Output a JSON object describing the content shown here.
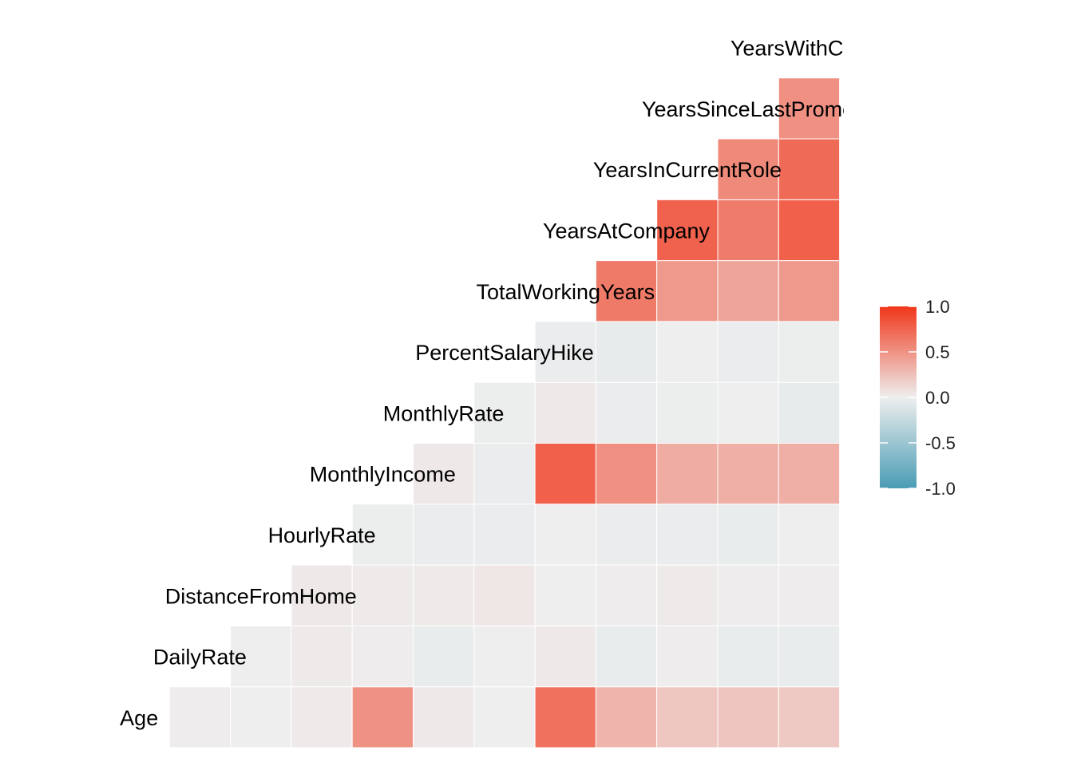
{
  "chart_data": {
    "type": "heatmap",
    "title": "",
    "variables": [
      "Age",
      "DailyRate",
      "DistanceFromHome",
      "HourlyRate",
      "MonthlyIncome",
      "MonthlyRate",
      "PercentSalaryHike",
      "TotalWorkingYears",
      "YearsAtCompany",
      "YearsInCurrentRole",
      "YearsSinceLastPromotion",
      "YearsWithCurrManager"
    ],
    "diagonal_labels": [
      "Age",
      "DailyRate",
      "DistanceFromHome",
      "HourlyRate",
      "MonthlyIncome",
      "MonthlyRate",
      "PercentSalaryHike",
      "TotalWorkingYears",
      "YearsAtCompany",
      "YearsInCurrentRole",
      "YearsSinceLastPromo",
      "YearsWithCurrM"
    ],
    "lower_triangle": [
      [],
      [
        0.01
      ],
      [
        0.0,
        -0.0
      ],
      [
        0.02,
        0.02,
        0.03
      ],
      [
        0.5,
        0.01,
        0.02,
        -0.01
      ],
      [
        0.03,
        -0.03,
        0.02,
        -0.02,
        0.03
      ],
      [
        0.0,
        0.0,
        0.04,
        -0.02,
        -0.02,
        -0.01
      ],
      [
        0.68,
        0.03,
        0.0,
        -0.0,
        0.77,
        0.03,
        -0.02
      ],
      [
        0.31,
        -0.03,
        0.01,
        -0.02,
        0.51,
        -0.02,
        -0.04,
        0.63
      ],
      [
        0.21,
        0.01,
        0.02,
        -0.02,
        0.36,
        -0.01,
        -0.0,
        0.46,
        0.76
      ],
      [
        0.22,
        -0.03,
        0.01,
        -0.03,
        0.34,
        -0.0,
        -0.02,
        0.4,
        0.62,
        0.55
      ],
      [
        0.2,
        -0.03,
        0.01,
        -0.0,
        0.34,
        -0.04,
        -0.01,
        0.46,
        0.77,
        0.71,
        0.51
      ]
    ],
    "color_scale": {
      "low": "#4a9cb5",
      "mid": "#eeeeee",
      "high": "#f0361a",
      "domain": [
        -1,
        1
      ]
    },
    "legend": {
      "title": "",
      "position": "right",
      "ticks": [
        "1.0",
        "0.5",
        "0.0",
        "-0.5",
        "-1.0"
      ]
    },
    "grid": false
  }
}
